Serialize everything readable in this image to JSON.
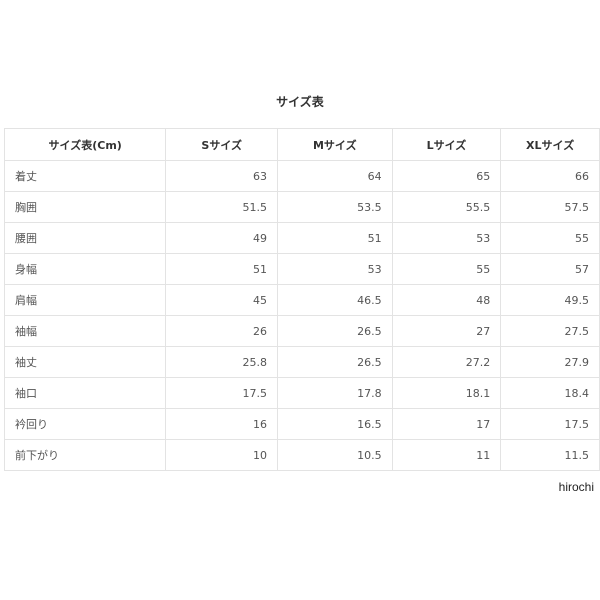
{
  "title": "サイズ表",
  "table": {
    "headers": [
      "サイズ表(Cm)",
      "Sサイズ",
      "Mサイズ",
      "Lサイズ",
      "XLサイズ"
    ],
    "rows": [
      [
        "着丈",
        "63",
        "64",
        "65",
        "66"
      ],
      [
        "胸囲",
        "51.5",
        "53.5",
        "55.5",
        "57.5"
      ],
      [
        "腰囲",
        "49",
        "51",
        "53",
        "55"
      ],
      [
        "身幅",
        "51",
        "53",
        "55",
        "57"
      ],
      [
        "肩幅",
        "45",
        "46.5",
        "48",
        "49.5"
      ],
      [
        "袖幅",
        "26",
        "26.5",
        "27",
        "27.5"
      ],
      [
        "袖丈",
        "25.8",
        "26.5",
        "27.2",
        "27.9"
      ],
      [
        "袖口",
        "17.5",
        "17.8",
        "18.1",
        "18.4"
      ],
      [
        "衿回り",
        "16",
        "16.5",
        "17",
        "17.5"
      ],
      [
        "前下がり",
        "10",
        "10.5",
        "11",
        "11.5"
      ]
    ]
  },
  "credit": "hirochi"
}
